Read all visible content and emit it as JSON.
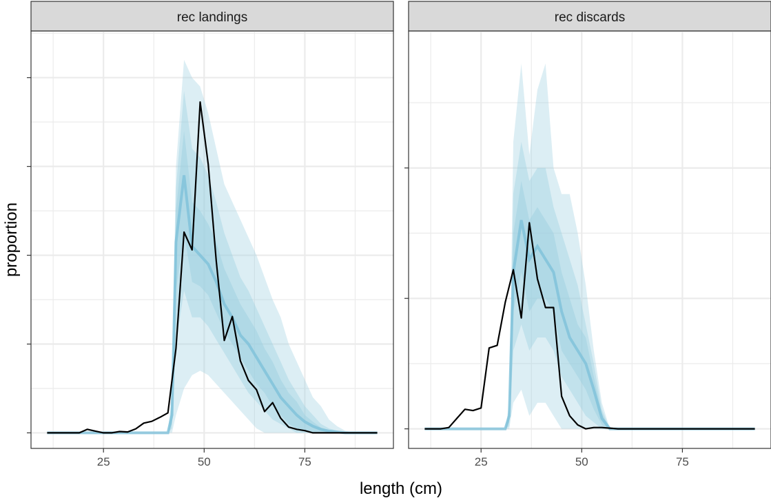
{
  "chart_data": {
    "type": "line",
    "xlabel": "length (cm)",
    "ylabel": "proportion",
    "xlim": [
      7,
      97
    ],
    "xticks": [
      25,
      50,
      75
    ],
    "grid": true,
    "colors": {
      "observed": "#000000",
      "band": "#9ccfe0",
      "band_median": "#7ec0da",
      "strip_fill": "#d9d9d9",
      "grid": "#ebebeb"
    },
    "panels": [
      {
        "title": "rec landings",
        "ylim": [
          -0.0035,
          0.0905
        ],
        "yticks": [
          0,
          0.02,
          0.04,
          0.06,
          0.08
        ],
        "observed": {
          "x": [
            11,
            13,
            15,
            17,
            19,
            21,
            23,
            25,
            27,
            29,
            31,
            33,
            35,
            37,
            39,
            41,
            43,
            45,
            47,
            49,
            51,
            53,
            55,
            57,
            59,
            61,
            63,
            65,
            67,
            69,
            71,
            73,
            75,
            77,
            79,
            81,
            83,
            85,
            87,
            89,
            91,
            93
          ],
          "y": [
            0,
            0,
            0,
            0,
            0,
            0.0008,
            0.0004,
            0,
            0,
            0.0003,
            0.0002,
            0.0009,
            0.0022,
            0.0026,
            0.0035,
            0.0045,
            0.019,
            0.0452,
            0.0412,
            0.0745,
            0.0605,
            0.0388,
            0.0208,
            0.0262,
            0.0162,
            0.0118,
            0.0097,
            0.0048,
            0.0068,
            0.0033,
            0.0013,
            0.0008,
            0.0005,
            0,
            0,
            0,
            0,
            0,
            0,
            0,
            0,
            0
          ]
        },
        "predicted_intervals": {
          "x": [
            11,
            41,
            42,
            43,
            45,
            47,
            49,
            51,
            53,
            55,
            57,
            59,
            61,
            63,
            65,
            67,
            69,
            71,
            73,
            75,
            77,
            79,
            81,
            83,
            85,
            87,
            89,
            91,
            93
          ],
          "median": [
            0,
            0,
            0.004,
            0.043,
            0.058,
            0.042,
            0.04,
            0.038,
            0.034,
            0.029,
            0.026,
            0.022,
            0.02,
            0.017,
            0.014,
            0.011,
            0.008,
            0.006,
            0.004,
            0.0025,
            0.0015,
            0.0008,
            0.0004,
            0.0002,
            0,
            0,
            0,
            0,
            0
          ],
          "bands": [
            {
              "lower": [
                0,
                0,
                0,
                0.004,
                0.01,
                0.013,
                0.014,
                0.013,
                0.011,
                0.009,
                0.007,
                0.005,
                0.003,
                0.001,
                0,
                0,
                0,
                0,
                0,
                0,
                0,
                0,
                0,
                0,
                0,
                0,
                0,
                0,
                0
              ],
              "upper": [
                0,
                0,
                0.01,
                0.06,
                0.084,
                0.08,
                0.078,
                0.072,
                0.064,
                0.056,
                0.052,
                0.048,
                0.044,
                0.04,
                0.035,
                0.03,
                0.026,
                0.02,
                0.016,
                0.012,
                0.008,
                0.006,
                0.003,
                0.0015,
                0.0005,
                0,
                0,
                0,
                0
              ]
            },
            {
              "lower": [
                0,
                0,
                0.001,
                0.02,
                0.032,
                0.026,
                0.026,
                0.024,
                0.021,
                0.018,
                0.015,
                0.012,
                0.009,
                0.007,
                0.005,
                0.003,
                0.002,
                0.001,
                0,
                0,
                0,
                0,
                0,
                0,
                0,
                0,
                0,
                0,
                0
              ],
              "upper": [
                0,
                0,
                0.007,
                0.055,
                0.077,
                0.064,
                0.062,
                0.058,
                0.052,
                0.045,
                0.04,
                0.035,
                0.032,
                0.028,
                0.024,
                0.02,
                0.016,
                0.012,
                0.009,
                0.006,
                0.004,
                0.002,
                0.001,
                0.0005,
                0,
                0,
                0,
                0,
                0
              ],
              "mid_lower": [
                0,
                0,
                0.002,
                0.032,
                0.045,
                0.034,
                0.033,
                0.031,
                0.027,
                0.023,
                0.02,
                0.017,
                0.014,
                0.011,
                0.009,
                0.006,
                0.004,
                0.002,
                0.001,
                0.0005,
                0,
                0,
                0,
                0,
                0,
                0,
                0,
                0,
                0
              ],
              "mid_upper": [
                0,
                0,
                0.006,
                0.05,
                0.068,
                0.052,
                0.05,
                0.047,
                0.043,
                0.037,
                0.033,
                0.029,
                0.026,
                0.023,
                0.019,
                0.016,
                0.012,
                0.009,
                0.007,
                0.004,
                0.0025,
                0.0012,
                0.0006,
                0.0002,
                0,
                0,
                0,
                0,
                0
              ]
            }
          ]
        }
      },
      {
        "title": "rec discards",
        "ylim": [
          -0.0015,
          0.0305
        ],
        "yticks": [
          0,
          0.01,
          0.02
        ],
        "observed": {
          "x": [
            11,
            13,
            15,
            17,
            19,
            21,
            23,
            25,
            27,
            29,
            31,
            33,
            35,
            37,
            39,
            41,
            43,
            45,
            47,
            49,
            51,
            53,
            55,
            57,
            59,
            61,
            63,
            65,
            67,
            69,
            71,
            73,
            75,
            77,
            79,
            81,
            83,
            85,
            87,
            89,
            91,
            93
          ],
          "y": [
            0,
            0,
            0,
            0.0001,
            0.0008,
            0.0015,
            0.0014,
            0.0016,
            0.0062,
            0.0064,
            0.0097,
            0.0122,
            0.0085,
            0.0158,
            0.0115,
            0.0093,
            0.0093,
            0.0025,
            0.001,
            0.0003,
            0,
            0.0001,
            0.0001,
            5e-05,
            0,
            0,
            0,
            0,
            0,
            0,
            0,
            0,
            0,
            0,
            0,
            0,
            0,
            0,
            0,
            0,
            0,
            0
          ]
        },
        "predicted_intervals": {
          "x": [
            11,
            31,
            32,
            33,
            35,
            37,
            39,
            41,
            43,
            45,
            47,
            49,
            51,
            53,
            55,
            57,
            93
          ],
          "median": [
            0,
            0,
            0.001,
            0.012,
            0.016,
            0.013,
            0.014,
            0.013,
            0.012,
            0.009,
            0.007,
            0.006,
            0.005,
            0.003,
            0.0008,
            0,
            0
          ],
          "bands": [
            {
              "lower": [
                0,
                0,
                0,
                0.002,
                0.003,
                0.001,
                0.002,
                0.002,
                0.001,
                0,
                0,
                0,
                0,
                0,
                0,
                0,
                0
              ],
              "upper": [
                0,
                0,
                0.002,
                0.022,
                0.028,
                0.021,
                0.026,
                0.028,
                0.02,
                0.018,
                0.018,
                0.015,
                0.011,
                0.006,
                0.002,
                0,
                0
              ]
            },
            {
              "lower": [
                0,
                0,
                0.0002,
                0.006,
                0.008,
                0.006,
                0.007,
                0.007,
                0.006,
                0.004,
                0.003,
                0.002,
                0.001,
                0.0005,
                0,
                0,
                0
              ],
              "upper": [
                0,
                0,
                0.0016,
                0.018,
                0.022,
                0.019,
                0.02,
                0.02,
                0.017,
                0.015,
                0.013,
                0.011,
                0.008,
                0.005,
                0.0015,
                0,
                0
              ],
              "mid_lower": [
                0,
                0,
                0.0005,
                0.009,
                0.012,
                0.009,
                0.01,
                0.01,
                0.009,
                0.006,
                0.005,
                0.004,
                0.003,
                0.0015,
                0.0003,
                0,
                0
              ],
              "mid_upper": [
                0,
                0,
                0.0013,
                0.015,
                0.019,
                0.016,
                0.017,
                0.016,
                0.015,
                0.012,
                0.01,
                0.008,
                0.007,
                0.004,
                0.0012,
                0,
                0
              ]
            }
          ]
        }
      }
    ]
  }
}
